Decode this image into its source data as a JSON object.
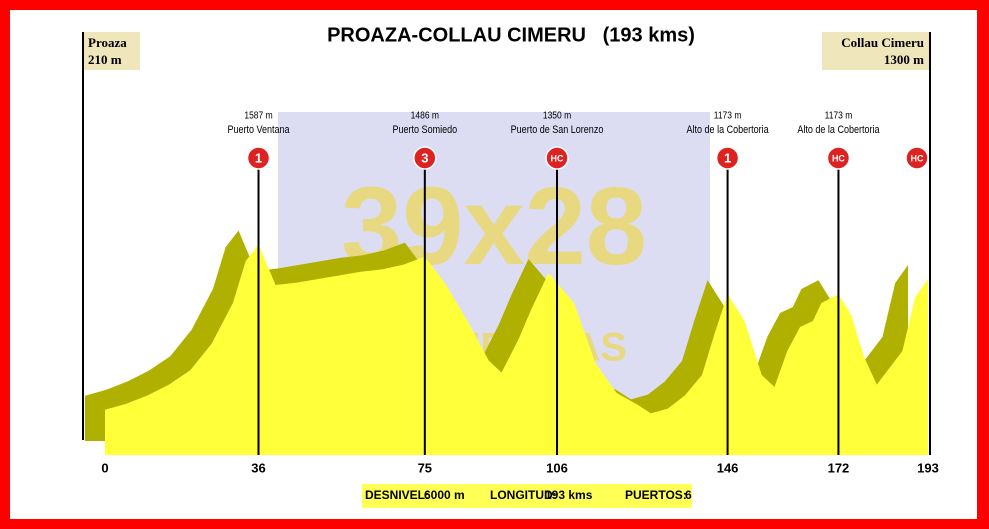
{
  "chart_data": {
    "type": "area",
    "title": "PROAZA-COLLAU CIMERU   (193 kms)",
    "start": {
      "name": "Proaza",
      "elevation": "210 m"
    },
    "finish": {
      "name": "Collau Cimeru",
      "elevation": "1300 m"
    },
    "watermark": [
      "39x28",
      "ALTIMETRÍAS"
    ],
    "x": [
      0,
      5,
      10,
      15,
      20,
      25,
      30,
      33,
      36,
      40,
      45,
      50,
      55,
      60,
      65,
      70,
      75,
      80,
      85,
      90,
      93,
      97,
      100,
      104,
      110,
      115,
      120,
      125,
      128,
      132,
      136,
      140,
      143,
      146,
      150,
      154,
      157,
      160,
      163,
      166,
      168,
      172,
      175,
      178,
      181,
      184,
      187,
      190,
      193
    ],
    "values": [
      210,
      260,
      330,
      420,
      540,
      760,
      1100,
      1450,
      1587,
      1250,
      1270,
      1300,
      1330,
      1360,
      1380,
      1420,
      1486,
      1250,
      950,
      620,
      520,
      800,
      1050,
      1350,
      1100,
      600,
      350,
      250,
      180,
      220,
      330,
      500,
      850,
      1173,
      950,
      500,
      400,
      700,
      900,
      950,
      1100,
      1173,
      1000,
      650,
      420,
      560,
      700,
      1150,
      1300
    ],
    "color": "#ffff3a",
    "shade_color": "#b0b000",
    "xlim": [
      0,
      193
    ],
    "xticks": [
      0,
      36,
      75,
      106,
      146,
      172,
      193
    ],
    "ylim": [
      0,
      2000
    ],
    "climbs": [
      {
        "x": 36,
        "elevation": "1587 m",
        "name": "Puerto Ventana",
        "category": "1"
      },
      {
        "x": 75,
        "elevation": "1486 m",
        "name": "Puerto Somiedo",
        "category": "3"
      },
      {
        "x": 106,
        "elevation": "1350 m",
        "name": "Puerto de San Lorenzo",
        "category": "HC"
      },
      {
        "x": 146,
        "elevation": "1173 m",
        "name": "Alto de la Cobertoria",
        "category": "1"
      },
      {
        "x": 172,
        "elevation": "1173 m",
        "name": "Alto de la Cobertoria",
        "category": "HC"
      },
      {
        "x": 193,
        "category": "HC"
      }
    ],
    "footer": [
      {
        "label": "DESNIVEL:",
        "value": "6000 m"
      },
      {
        "label": "LONGITUD:",
        "value": "193 kms"
      },
      {
        "label": "PUERTOS:",
        "value": "6"
      }
    ]
  }
}
